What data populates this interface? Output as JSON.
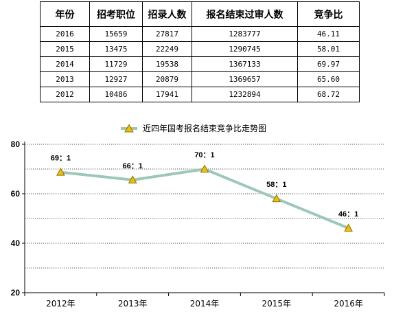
{
  "table": {
    "headers": [
      "年份",
      "招考职位",
      "招录人数",
      "报名结束过审人数",
      "竞争比"
    ],
    "rows": [
      [
        "2016",
        "15659",
        "27817",
        "1283777",
        "46.11"
      ],
      [
        "2015",
        "13475",
        "22249",
        "1290745",
        "58.01"
      ],
      [
        "2014",
        "11729",
        "19538",
        "1367133",
        "69.97"
      ],
      [
        "2013",
        "12927",
        "20879",
        "1369657",
        "65.60"
      ],
      [
        "2012",
        "10486",
        "17941",
        "1232894",
        "68.72"
      ]
    ]
  },
  "chart_data": {
    "type": "line",
    "title": "",
    "categories": [
      "2012年",
      "2013年",
      "2014年",
      "2015年",
      "2016年"
    ],
    "series": [
      {
        "name": "近四年国考报名结束竞争比走势图",
        "values": [
          68.72,
          65.6,
          69.97,
          58.01,
          46.11
        ],
        "data_labels": [
          "69：1",
          "66：1",
          "70：1",
          "58：1",
          "46：1"
        ],
        "color": "#9dc8b7",
        "marker_fill": "#f2c200",
        "marker_stroke": "#8a6d00"
      }
    ],
    "yticks": [
      20,
      40,
      60,
      80
    ],
    "ylim": [
      20,
      80
    ],
    "grid": "dotted horizontal at every 10",
    "legend": "top-center",
    "xlabel": "",
    "ylabel": ""
  }
}
